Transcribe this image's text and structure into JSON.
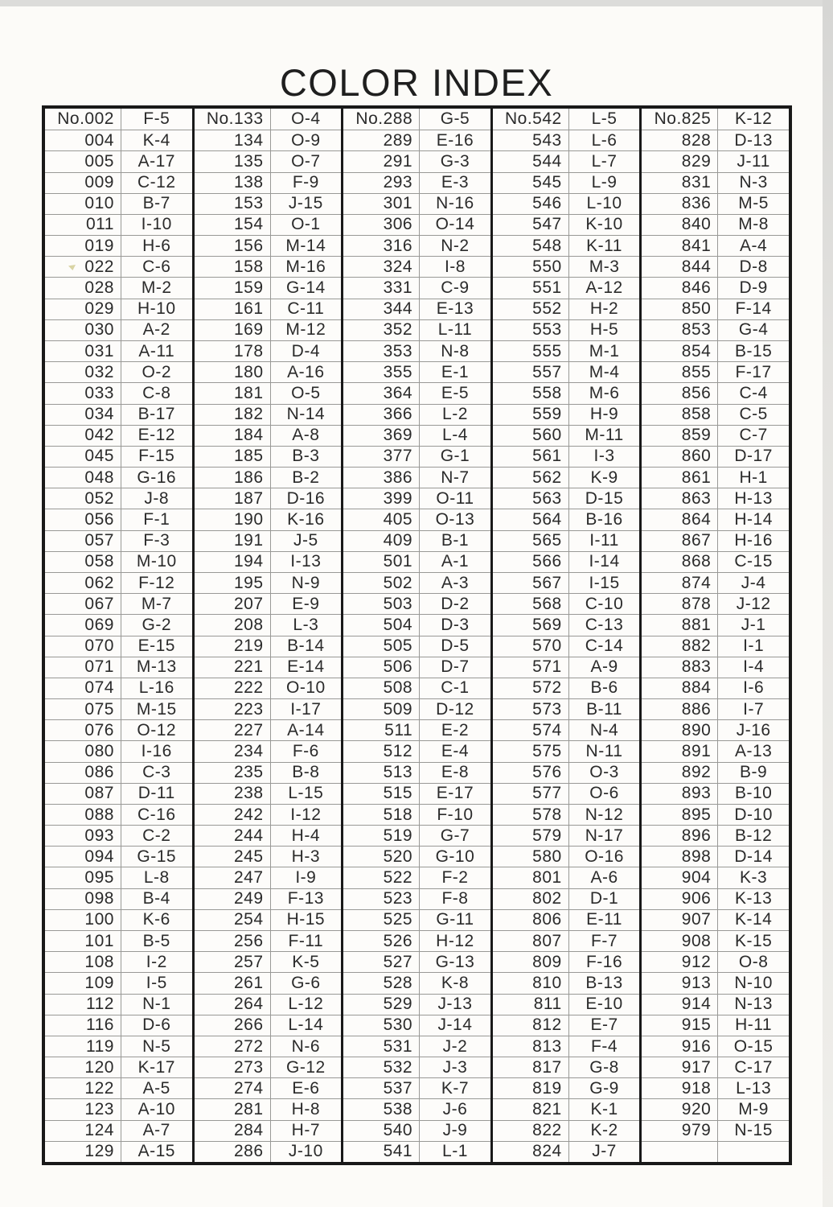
{
  "title": "COLOR INDEX",
  "colors": {
    "page_background": "#fcfbf8",
    "table_border": "#191919",
    "grid_line": "#999996",
    "text": "#2b2b2b"
  },
  "table": {
    "columns": [
      {
        "rows": [
          [
            "No.002",
            "F-5"
          ],
          [
            "004",
            "K-4"
          ],
          [
            "005",
            "A-17"
          ],
          [
            "009",
            "C-12"
          ],
          [
            "010",
            "B-7"
          ],
          [
            "011",
            "I-10"
          ],
          [
            "019",
            "H-6"
          ],
          [
            "022",
            "C-6"
          ],
          [
            "028",
            "M-2"
          ],
          [
            "029",
            "H-10"
          ],
          [
            "030",
            "A-2"
          ],
          [
            "031",
            "A-11"
          ],
          [
            "032",
            "O-2"
          ],
          [
            "033",
            "C-8"
          ],
          [
            "034",
            "B-17"
          ],
          [
            "042",
            "E-12"
          ],
          [
            "045",
            "F-15"
          ],
          [
            "048",
            "G-16"
          ],
          [
            "052",
            "J-8"
          ],
          [
            "056",
            "F-1"
          ],
          [
            "057",
            "F-3"
          ],
          [
            "058",
            "M-10"
          ],
          [
            "062",
            "F-12"
          ],
          [
            "067",
            "M-7"
          ],
          [
            "069",
            "G-2"
          ],
          [
            "070",
            "E-15"
          ],
          [
            "071",
            "M-13"
          ],
          [
            "074",
            "L-16"
          ],
          [
            "075",
            "M-15"
          ],
          [
            "076",
            "O-12"
          ],
          [
            "080",
            "I-16"
          ],
          [
            "086",
            "C-3"
          ],
          [
            "087",
            "D-11"
          ],
          [
            "088",
            "C-16"
          ],
          [
            "093",
            "C-2"
          ],
          [
            "094",
            "G-15"
          ],
          [
            "095",
            "L-8"
          ],
          [
            "098",
            "B-4"
          ],
          [
            "100",
            "K-6"
          ],
          [
            "101",
            "B-5"
          ],
          [
            "108",
            "I-2"
          ],
          [
            "109",
            "I-5"
          ],
          [
            "112",
            "N-1"
          ],
          [
            "116",
            "D-6"
          ],
          [
            "119",
            "N-5"
          ],
          [
            "120",
            "K-17"
          ],
          [
            "122",
            "A-5"
          ],
          [
            "123",
            "A-10"
          ],
          [
            "124",
            "A-7"
          ],
          [
            "129",
            "A-15"
          ]
        ]
      },
      {
        "rows": [
          [
            "No.133",
            "O-4"
          ],
          [
            "134",
            "O-9"
          ],
          [
            "135",
            "O-7"
          ],
          [
            "138",
            "F-9"
          ],
          [
            "153",
            "J-15"
          ],
          [
            "154",
            "O-1"
          ],
          [
            "156",
            "M-14"
          ],
          [
            "158",
            "M-16"
          ],
          [
            "159",
            "G-14"
          ],
          [
            "161",
            "C-11"
          ],
          [
            "169",
            "M-12"
          ],
          [
            "178",
            "D-4"
          ],
          [
            "180",
            "A-16"
          ],
          [
            "181",
            "O-5"
          ],
          [
            "182",
            "N-14"
          ],
          [
            "184",
            "A-8"
          ],
          [
            "185",
            "B-3"
          ],
          [
            "186",
            "B-2"
          ],
          [
            "187",
            "D-16"
          ],
          [
            "190",
            "K-16"
          ],
          [
            "191",
            "J-5"
          ],
          [
            "194",
            "I-13"
          ],
          [
            "195",
            "N-9"
          ],
          [
            "207",
            "E-9"
          ],
          [
            "208",
            "L-3"
          ],
          [
            "219",
            "B-14"
          ],
          [
            "221",
            "E-14"
          ],
          [
            "222",
            "O-10"
          ],
          [
            "223",
            "I-17"
          ],
          [
            "227",
            "A-14"
          ],
          [
            "234",
            "F-6"
          ],
          [
            "235",
            "B-8"
          ],
          [
            "238",
            "L-15"
          ],
          [
            "242",
            "I-12"
          ],
          [
            "244",
            "H-4"
          ],
          [
            "245",
            "H-3"
          ],
          [
            "247",
            "I-9"
          ],
          [
            "249",
            "F-13"
          ],
          [
            "254",
            "H-15"
          ],
          [
            "256",
            "F-11"
          ],
          [
            "257",
            "K-5"
          ],
          [
            "261",
            "G-6"
          ],
          [
            "264",
            "L-12"
          ],
          [
            "266",
            "L-14"
          ],
          [
            "272",
            "N-6"
          ],
          [
            "273",
            "G-12"
          ],
          [
            "274",
            "E-6"
          ],
          [
            "281",
            "H-8"
          ],
          [
            "284",
            "H-7"
          ],
          [
            "286",
            "J-10"
          ]
        ]
      },
      {
        "rows": [
          [
            "No.288",
            "G-5"
          ],
          [
            "289",
            "E-16"
          ],
          [
            "291",
            "G-3"
          ],
          [
            "293",
            "E-3"
          ],
          [
            "301",
            "N-16"
          ],
          [
            "306",
            "O-14"
          ],
          [
            "316",
            "N-2"
          ],
          [
            "324",
            "I-8"
          ],
          [
            "331",
            "C-9"
          ],
          [
            "344",
            "E-13"
          ],
          [
            "352",
            "L-11"
          ],
          [
            "353",
            "N-8"
          ],
          [
            "355",
            "E-1"
          ],
          [
            "364",
            "E-5"
          ],
          [
            "366",
            "L-2"
          ],
          [
            "369",
            "L-4"
          ],
          [
            "377",
            "G-1"
          ],
          [
            "386",
            "N-7"
          ],
          [
            "399",
            "O-11"
          ],
          [
            "405",
            "O-13"
          ],
          [
            "409",
            "B-1"
          ],
          [
            "501",
            "A-1"
          ],
          [
            "502",
            "A-3"
          ],
          [
            "503",
            "D-2"
          ],
          [
            "504",
            "D-3"
          ],
          [
            "505",
            "D-5"
          ],
          [
            "506",
            "D-7"
          ],
          [
            "508",
            "C-1"
          ],
          [
            "509",
            "D-12"
          ],
          [
            "511",
            "E-2"
          ],
          [
            "512",
            "E-4"
          ],
          [
            "513",
            "E-8"
          ],
          [
            "515",
            "E-17"
          ],
          [
            "518",
            "F-10"
          ],
          [
            "519",
            "G-7"
          ],
          [
            "520",
            "G-10"
          ],
          [
            "522",
            "F-2"
          ],
          [
            "523",
            "F-8"
          ],
          [
            "525",
            "G-11"
          ],
          [
            "526",
            "H-12"
          ],
          [
            "527",
            "G-13"
          ],
          [
            "528",
            "K-8"
          ],
          [
            "529",
            "J-13"
          ],
          [
            "530",
            "J-14"
          ],
          [
            "531",
            "J-2"
          ],
          [
            "532",
            "J-3"
          ],
          [
            "537",
            "K-7"
          ],
          [
            "538",
            "J-6"
          ],
          [
            "540",
            "J-9"
          ],
          [
            "541",
            "L-1"
          ]
        ]
      },
      {
        "rows": [
          [
            "No.542",
            "L-5"
          ],
          [
            "543",
            "L-6"
          ],
          [
            "544",
            "L-7"
          ],
          [
            "545",
            "L-9"
          ],
          [
            "546",
            "L-10"
          ],
          [
            "547",
            "K-10"
          ],
          [
            "548",
            "K-11"
          ],
          [
            "550",
            "M-3"
          ],
          [
            "551",
            "A-12"
          ],
          [
            "552",
            "H-2"
          ],
          [
            "553",
            "H-5"
          ],
          [
            "555",
            "M-1"
          ],
          [
            "557",
            "M-4"
          ],
          [
            "558",
            "M-6"
          ],
          [
            "559",
            "H-9"
          ],
          [
            "560",
            "M-11"
          ],
          [
            "561",
            "I-3"
          ],
          [
            "562",
            "K-9"
          ],
          [
            "563",
            "D-15"
          ],
          [
            "564",
            "B-16"
          ],
          [
            "565",
            "I-11"
          ],
          [
            "566",
            "I-14"
          ],
          [
            "567",
            "I-15"
          ],
          [
            "568",
            "C-10"
          ],
          [
            "569",
            "C-13"
          ],
          [
            "570",
            "C-14"
          ],
          [
            "571",
            "A-9"
          ],
          [
            "572",
            "B-6"
          ],
          [
            "573",
            "B-11"
          ],
          [
            "574",
            "N-4"
          ],
          [
            "575",
            "N-11"
          ],
          [
            "576",
            "O-3"
          ],
          [
            "577",
            "O-6"
          ],
          [
            "578",
            "N-12"
          ],
          [
            "579",
            "N-17"
          ],
          [
            "580",
            "O-16"
          ],
          [
            "801",
            "A-6"
          ],
          [
            "802",
            "D-1"
          ],
          [
            "806",
            "E-11"
          ],
          [
            "807",
            "F-7"
          ],
          [
            "809",
            "F-16"
          ],
          [
            "810",
            "B-13"
          ],
          [
            "811",
            "E-10"
          ],
          [
            "812",
            "E-7"
          ],
          [
            "813",
            "F-4"
          ],
          [
            "817",
            "G-8"
          ],
          [
            "819",
            "G-9"
          ],
          [
            "821",
            "K-1"
          ],
          [
            "822",
            "K-2"
          ],
          [
            "824",
            "J-7"
          ]
        ]
      },
      {
        "rows": [
          [
            "No.825",
            "K-12"
          ],
          [
            "828",
            "D-13"
          ],
          [
            "829",
            "J-11"
          ],
          [
            "831",
            "N-3"
          ],
          [
            "836",
            "M-5"
          ],
          [
            "840",
            "M-8"
          ],
          [
            "841",
            "A-4"
          ],
          [
            "844",
            "D-8"
          ],
          [
            "846",
            "D-9"
          ],
          [
            "850",
            "F-14"
          ],
          [
            "853",
            "G-4"
          ],
          [
            "854",
            "B-15"
          ],
          [
            "855",
            "F-17"
          ],
          [
            "856",
            "C-4"
          ],
          [
            "858",
            "C-5"
          ],
          [
            "859",
            "C-7"
          ],
          [
            "860",
            "D-17"
          ],
          [
            "861",
            "H-1"
          ],
          [
            "863",
            "H-13"
          ],
          [
            "864",
            "H-14"
          ],
          [
            "867",
            "H-16"
          ],
          [
            "868",
            "C-15"
          ],
          [
            "874",
            "J-4"
          ],
          [
            "878",
            "J-12"
          ],
          [
            "881",
            "J-1"
          ],
          [
            "882",
            "I-1"
          ],
          [
            "883",
            "I-4"
          ],
          [
            "884",
            "I-6"
          ],
          [
            "886",
            "I-7"
          ],
          [
            "890",
            "J-16"
          ],
          [
            "891",
            "A-13"
          ],
          [
            "892",
            "B-9"
          ],
          [
            "893",
            "B-10"
          ],
          [
            "895",
            "D-10"
          ],
          [
            "896",
            "B-12"
          ],
          [
            "898",
            "D-14"
          ],
          [
            "904",
            "K-3"
          ],
          [
            "906",
            "K-13"
          ],
          [
            "907",
            "K-14"
          ],
          [
            "908",
            "K-15"
          ],
          [
            "912",
            "O-8"
          ],
          [
            "913",
            "N-10"
          ],
          [
            "914",
            "N-13"
          ],
          [
            "915",
            "H-11"
          ],
          [
            "916",
            "O-15"
          ],
          [
            "917",
            "C-17"
          ],
          [
            "918",
            "L-13"
          ],
          [
            "920",
            "M-9"
          ],
          [
            "979",
            "N-15"
          ],
          [
            "",
            ""
          ]
        ]
      }
    ]
  }
}
